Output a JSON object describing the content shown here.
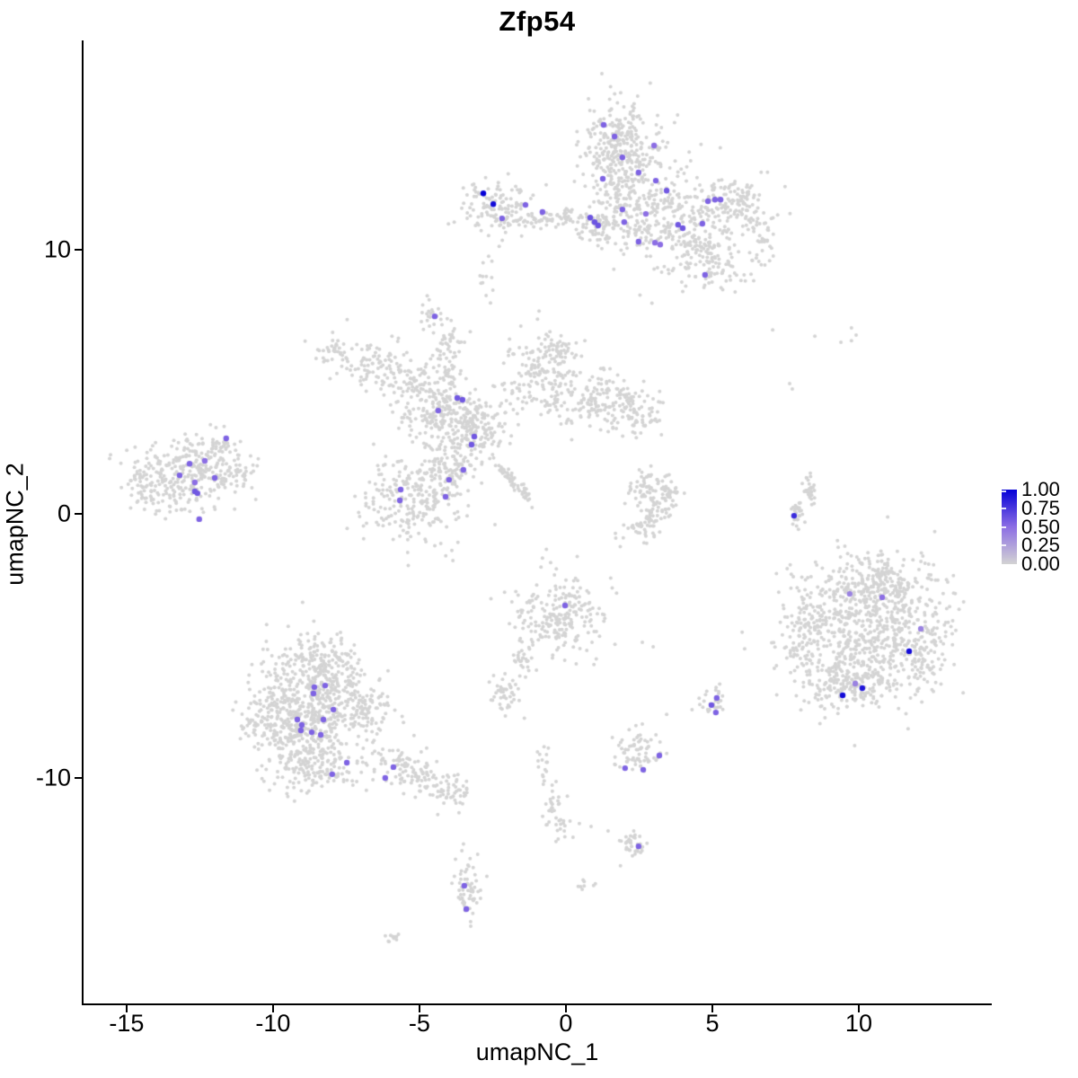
{
  "title": "Zfp54",
  "axes": {
    "x": {
      "label": "umapNC_1",
      "ticks": [
        -15,
        -10,
        -5,
        0,
        5,
        10
      ],
      "range": [
        -16.47,
        14.51
      ]
    },
    "y": {
      "label": "umapNC_2",
      "ticks": [
        -10,
        0,
        10
      ],
      "range": [
        -18.54,
        17.93
      ]
    }
  },
  "legend": {
    "tick_labels": [
      "1.00",
      "0.75",
      "0.50",
      "0.25",
      "0.00"
    ],
    "tick_values": [
      1.0,
      0.75,
      0.5,
      0.25,
      0.0
    ],
    "color_low": "#d3d3d3",
    "color_mid": "#8c6ee4",
    "color_high": "#0500d7"
  },
  "chart_data": {
    "type": "scatter",
    "title": "Zfp54",
    "xlabel": "umapNC_1",
    "ylabel": "umapNC_2",
    "xlim": [
      -16.47,
      14.51
    ],
    "ylim": [
      -18.54,
      17.93
    ],
    "grid": false,
    "background_point_color": "#d4d4d4",
    "background_point_radius": 2.0,
    "highlight_point_radius": 3.2,
    "color_scale": {
      "low": "#d3d3d3",
      "mid": "#8c6ee4",
      "high": "#0500d7",
      "domain": [
        0,
        1
      ]
    },
    "clusters": [
      {
        "name": "top",
        "blobs": [
          [
            1.87,
            14.01,
            0.67,
            0.88,
            280
          ],
          [
            2.15,
            11.8,
            0.77,
            0.85,
            200
          ],
          [
            4.29,
            10.95,
            1.17,
            1.02,
            300
          ],
          [
            5.58,
            11.8,
            0.61,
            0.48,
            90
          ],
          [
            -2.39,
            11.56,
            0.61,
            0.54,
            130
          ],
          [
            -0.4,
            11.16,
            0.8,
            0.17,
            70
          ],
          [
            1.13,
            10.88,
            0.37,
            0.34,
            50
          ],
          [
            4.91,
            9.42,
            0.55,
            0.48,
            70
          ],
          [
            6.81,
            10.34,
            0.25,
            0.68,
            35
          ],
          [
            -2.79,
            9.08,
            0.15,
            0.41,
            12
          ]
        ]
      },
      {
        "name": "top-small",
        "blobs": [
          [
            -4.51,
            7.41,
            0.25,
            0.31,
            22
          ]
        ]
      },
      {
        "name": "middle",
        "blobs": [
          [
            -6.69,
            5.68,
            0.67,
            0.48,
            80
          ],
          [
            -5.37,
            5.0,
            0.55,
            0.41,
            70
          ],
          [
            -7.91,
            6.02,
            0.31,
            0.34,
            30
          ],
          [
            -3.99,
            6.02,
            0.25,
            0.61,
            60
          ],
          [
            -4.29,
            3.81,
            0.77,
            0.68,
            220
          ],
          [
            -3.07,
            3.13,
            0.61,
            0.61,
            160
          ],
          [
            -0.92,
            5.17,
            0.67,
            0.68,
            150
          ],
          [
            -0.37,
            6.19,
            0.37,
            0.34,
            50
          ],
          [
            1.23,
            4.15,
            0.86,
            0.54,
            160
          ],
          [
            2.45,
            3.81,
            0.46,
            0.41,
            60
          ],
          [
            -5.21,
            0.58,
            0.92,
            0.85,
            240
          ],
          [
            -3.99,
            1.77,
            0.46,
            0.51,
            80
          ],
          [
            -1.9,
            1.33,
            0.55,
            0.1,
            55,
            -47
          ]
        ]
      },
      {
        "name": "far-left",
        "blobs": [
          [
            -13.04,
            1.36,
            0.86,
            0.68,
            260
          ],
          [
            -11.29,
            1.5,
            0.43,
            0.34,
            60
          ],
          [
            -12.27,
            2.45,
            0.46,
            0.27,
            40
          ],
          [
            -11.66,
            2.62,
            0.25,
            0.2,
            15
          ],
          [
            -14.26,
            0.92,
            0.37,
            0.41,
            40
          ]
        ]
      },
      {
        "name": "mid-right-small",
        "blobs": [
          [
            2.76,
            1.09,
            0.37,
            0.34,
            50
          ],
          [
            3.22,
            0.24,
            0.31,
            0.48,
            50
          ],
          [
            2.52,
            -0.44,
            0.37,
            0.34,
            40
          ],
          [
            3.62,
            0.75,
            0.18,
            0.27,
            20
          ]
        ]
      },
      {
        "name": "right-strip",
        "blobs": [
          [
            8.31,
            0.92,
            0.12,
            0.34,
            30
          ],
          [
            7.91,
            0.07,
            0.12,
            0.31,
            25
          ]
        ]
      },
      {
        "name": "right-large",
        "blobs": [
          [
            10.28,
            -4.35,
            1.29,
            1.36,
            650
          ],
          [
            10.58,
            -2.65,
            0.92,
            0.54,
            180
          ],
          [
            8.13,
            -4.52,
            0.37,
            0.75,
            90
          ],
          [
            9.82,
            -6.39,
            0.92,
            0.51,
            160
          ],
          [
            12.27,
            -4.86,
            0.43,
            0.75,
            90
          ]
        ]
      },
      {
        "name": "center",
        "blobs": [
          [
            -0.15,
            -3.84,
            0.77,
            0.75,
            220
          ],
          [
            -1.47,
            -5.44,
            0.18,
            0.41,
            30
          ]
        ]
      },
      {
        "name": "center-small",
        "blobs": [
          [
            -2.09,
            -6.9,
            0.28,
            0.41,
            45
          ]
        ]
      },
      {
        "name": "bottom-left",
        "blobs": [
          [
            -8.59,
            -6.73,
            0.92,
            0.95,
            280
          ],
          [
            -8.9,
            -8.1,
            0.98,
            0.85,
            280
          ],
          [
            -10.12,
            -7.76,
            0.46,
            0.68,
            100
          ],
          [
            -8.28,
            -5.54,
            0.61,
            0.48,
            100
          ],
          [
            -7.06,
            -7.41,
            0.55,
            0.61,
            120
          ],
          [
            -8.59,
            -9.63,
            0.77,
            0.51,
            140
          ],
          [
            -5.21,
            -9.8,
            0.8,
            0.37,
            130,
            -29
          ],
          [
            -3.83,
            -10.58,
            0.31,
            0.2,
            30
          ]
        ]
      },
      {
        "name": "bottom-center-bits",
        "blobs": [
          [
            -0.77,
            -9.46,
            0.15,
            0.34,
            15
          ],
          [
            -0.46,
            -10.82,
            0.15,
            0.48,
            20
          ],
          [
            -0.25,
            -11.84,
            0.21,
            0.27,
            20
          ],
          [
            2.45,
            -9.05,
            0.49,
            0.41,
            70
          ],
          [
            2.3,
            -12.59,
            0.34,
            0.27,
            35
          ],
          [
            0.64,
            -13.95,
            0.12,
            0.17,
            8
          ]
        ]
      },
      {
        "name": "small-right",
        "blobs": [
          [
            5.0,
            -7.18,
            0.21,
            0.37,
            30
          ]
        ]
      },
      {
        "name": "bottom-small",
        "blobs": [
          [
            -3.37,
            -14.22,
            0.25,
            0.68,
            60
          ]
        ]
      },
      {
        "name": "bottom-tiny",
        "blobs": [
          [
            -5.98,
            -16.02,
            0.18,
            0.14,
            10
          ]
        ]
      }
    ],
    "extra_points": [
      [
        7.06,
        6.97
      ],
      [
        8.5,
        6.73
      ],
      [
        9.39,
        6.5
      ],
      [
        9.75,
        7.04
      ],
      [
        9.91,
        6.77
      ],
      [
        9.75,
        6.56
      ],
      [
        7.64,
        4.93
      ],
      [
        7.73,
        4.73
      ],
      [
        2.61,
        -4.86
      ],
      [
        2.98,
        -5.03
      ],
      [
        3.44,
        -7.59
      ],
      [
        0.46,
        -11.73
      ],
      [
        0.86,
        -11.84
      ],
      [
        1.44,
        -12.01
      ],
      [
        -0.71,
        -9.69
      ]
    ],
    "highlights": [
      [
        -2.82,
        12.14,
        1.0
      ],
      [
        -2.48,
        11.73,
        0.95
      ],
      [
        -1.38,
        11.7,
        0.55
      ],
      [
        -0.8,
        11.43,
        0.55
      ],
      [
        -2.18,
        11.19,
        0.55
      ],
      [
        1.29,
        14.73,
        0.55
      ],
      [
        1.66,
        14.29,
        0.55
      ],
      [
        3.01,
        13.95,
        0.5
      ],
      [
        1.93,
        13.5,
        0.55
      ],
      [
        2.48,
        12.93,
        0.55
      ],
      [
        1.26,
        12.69,
        0.55
      ],
      [
        3.07,
        12.62,
        0.55
      ],
      [
        3.44,
        12.24,
        0.6
      ],
      [
        4.85,
        11.84,
        0.55
      ],
      [
        5.09,
        11.9,
        0.55
      ],
      [
        5.28,
        11.9,
        0.55
      ],
      [
        1.93,
        11.53,
        0.55
      ],
      [
        0.83,
        11.22,
        0.62
      ],
      [
        0.98,
        11.05,
        0.62
      ],
      [
        1.1,
        10.92,
        0.62
      ],
      [
        1.99,
        11.05,
        0.55
      ],
      [
        2.73,
        11.36,
        0.5
      ],
      [
        3.83,
        10.95,
        0.6
      ],
      [
        3.99,
        10.82,
        0.6
      ],
      [
        4.66,
        10.99,
        0.55
      ],
      [
        2.48,
        10.31,
        0.55
      ],
      [
        3.04,
        10.27,
        0.5
      ],
      [
        3.22,
        10.2,
        0.5
      ],
      [
        4.75,
        9.05,
        0.55
      ],
      [
        -4.48,
        7.48,
        0.55
      ],
      [
        -3.71,
        4.39,
        0.6
      ],
      [
        -3.53,
        4.32,
        0.6
      ],
      [
        -4.36,
        3.91,
        0.55
      ],
      [
        -3.13,
        2.93,
        0.6
      ],
      [
        -3.22,
        2.62,
        0.6
      ],
      [
        -3.5,
        1.67,
        0.55
      ],
      [
        -3.99,
        1.29,
        0.55
      ],
      [
        -5.64,
        0.92,
        0.55
      ],
      [
        -5.67,
        0.51,
        0.55
      ],
      [
        -4.11,
        0.65,
        0.55
      ],
      [
        -11.6,
        2.86,
        0.55
      ],
      [
        -12.85,
        1.9,
        0.55
      ],
      [
        -12.33,
        2.01,
        0.5
      ],
      [
        -13.19,
        1.46,
        0.55
      ],
      [
        -11.99,
        1.36,
        0.55
      ],
      [
        -12.67,
        1.19,
        0.5
      ],
      [
        -12.67,
        0.85,
        0.6
      ],
      [
        -12.58,
        0.78,
        0.6
      ],
      [
        -12.52,
        -0.2,
        0.55
      ],
      [
        7.79,
        -0.07,
        0.8
      ],
      [
        9.69,
        -3.03,
        0.4
      ],
      [
        10.8,
        -3.16,
        0.5
      ],
      [
        12.12,
        -4.35,
        0.4
      ],
      [
        11.72,
        -5.2,
        0.95
      ],
      [
        9.88,
        -6.43,
        0.4
      ],
      [
        10.12,
        -6.6,
        0.9
      ],
      [
        9.45,
        -6.87,
        0.95
      ],
      [
        -0.03,
        -3.47,
        0.55
      ],
      [
        -8.59,
        -6.56,
        0.55
      ],
      [
        -8.22,
        -6.5,
        0.55
      ],
      [
        -8.62,
        -6.8,
        0.55
      ],
      [
        -7.94,
        -7.41,
        0.55
      ],
      [
        -8.28,
        -7.79,
        0.55
      ],
      [
        -9.17,
        -7.79,
        0.55
      ],
      [
        -9.02,
        -7.99,
        0.55
      ],
      [
        -9.05,
        -8.2,
        0.55
      ],
      [
        -8.68,
        -8.27,
        0.55
      ],
      [
        -8.37,
        -8.37,
        0.55
      ],
      [
        -7.48,
        -9.42,
        0.55
      ],
      [
        -7.98,
        -9.86,
        0.55
      ],
      [
        -5.89,
        -9.59,
        0.55
      ],
      [
        -6.17,
        -10.0,
        0.55
      ],
      [
        2.02,
        -9.63,
        0.55
      ],
      [
        2.64,
        -9.69,
        0.55
      ],
      [
        3.19,
        -9.15,
        0.55
      ],
      [
        2.48,
        -12.59,
        0.55
      ],
      [
        5.15,
        -6.97,
        0.55
      ],
      [
        4.97,
        -7.24,
        0.6
      ],
      [
        5.12,
        -7.52,
        0.55
      ],
      [
        -3.47,
        -14.08,
        0.55
      ],
      [
        -3.4,
        -14.97,
        0.55
      ]
    ]
  }
}
